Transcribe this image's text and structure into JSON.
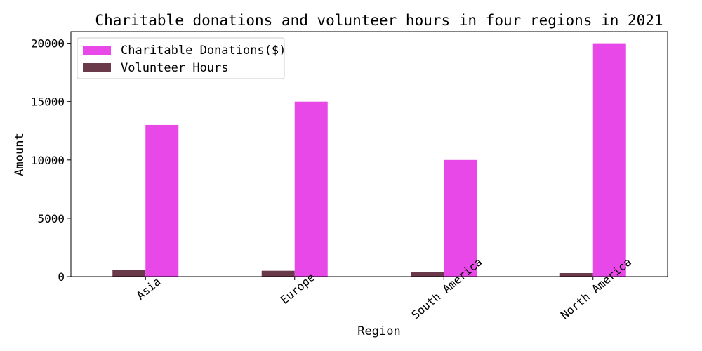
{
  "chart_data": {
    "type": "bar",
    "title": "Charitable donations and volunteer hours in four regions in 2021",
    "xlabel": "Region",
    "ylabel": "Amount",
    "categories": [
      "Asia",
      "Europe",
      "South America",
      "North America"
    ],
    "series": [
      {
        "name": "Volunteer Hours",
        "values": [
          600,
          500,
          400,
          300
        ],
        "color": "#6b3a4a"
      },
      {
        "name": "Charitable Donations($)",
        "values": [
          13000,
          15000,
          10000,
          20000
        ],
        "color": "#e848e8"
      }
    ],
    "legend_order": [
      1,
      0
    ],
    "legend_position": "top-left",
    "ylim": [
      0,
      21000
    ],
    "yticks": [
      0,
      5000,
      10000,
      15000,
      20000
    ],
    "grid": false
  }
}
